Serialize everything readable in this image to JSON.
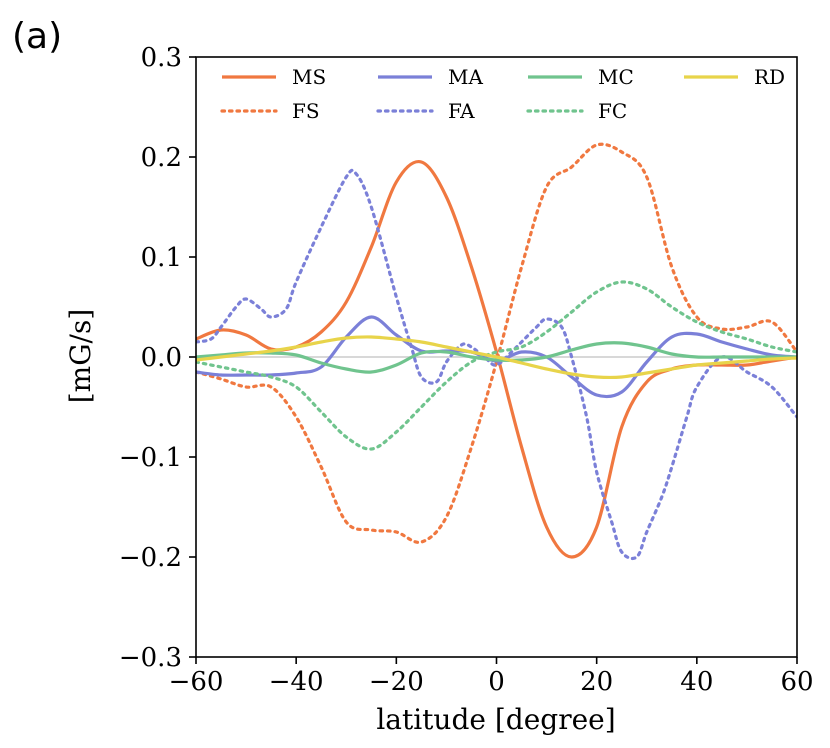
{
  "panel_label": "(a)",
  "chart_data": {
    "type": "line",
    "title": "",
    "xlabel": "latitude [degree]",
    "ylabel": "[mG/s]",
    "xlim": [
      -60,
      60
    ],
    "ylim": [
      -0.3,
      0.3
    ],
    "xticks": [
      -60,
      -40,
      -20,
      0,
      20,
      40,
      60
    ],
    "xtick_labels": [
      "−60",
      "−40",
      "−20",
      "0",
      "20",
      "40",
      "60"
    ],
    "yticks": [
      -0.3,
      -0.2,
      -0.1,
      0.0,
      0.1,
      0.2,
      0.3
    ],
    "ytick_labels": [
      "−0.3",
      "−0.2",
      "−0.1",
      "0.0",
      "0.1",
      "0.2",
      "0.3"
    ],
    "grid": false,
    "zero_line": true,
    "legend_position": "top",
    "legend_columns": 4,
    "series": [
      {
        "name": "MS",
        "color": "#f07840",
        "style": "solid",
        "x": [
          -60,
          -55,
          -50,
          -45,
          -40,
          -35,
          -30,
          -25,
          -20,
          -15,
          -10,
          -5,
          0,
          5,
          10,
          15,
          20,
          25,
          30,
          35,
          40,
          45,
          50,
          55,
          60
        ],
        "y": [
          0.018,
          0.027,
          0.022,
          0.008,
          0.01,
          0.025,
          0.055,
          0.11,
          0.175,
          0.195,
          0.16,
          0.09,
          0.005,
          -0.09,
          -0.17,
          -0.2,
          -0.17,
          -0.07,
          -0.025,
          -0.012,
          -0.008,
          -0.008,
          -0.008,
          -0.004,
          0.0
        ]
      },
      {
        "name": "FS",
        "color": "#f07840",
        "style": "dotted",
        "x": [
          -60,
          -55,
          -50,
          -45,
          -40,
          -35,
          -30,
          -25,
          -20,
          -15,
          -10,
          -5,
          0,
          5,
          10,
          15,
          20,
          25,
          30,
          35,
          40,
          45,
          50,
          55,
          60
        ],
        "y": [
          -0.015,
          -0.022,
          -0.03,
          -0.03,
          -0.06,
          -0.11,
          -0.165,
          -0.173,
          -0.175,
          -0.185,
          -0.16,
          -0.09,
          -0.005,
          0.09,
          0.17,
          0.19,
          0.212,
          0.205,
          0.18,
          0.09,
          0.04,
          0.028,
          0.03,
          0.035,
          0.005
        ]
      },
      {
        "name": "MA",
        "color": "#7b80d8",
        "style": "solid",
        "x": [
          -60,
          -55,
          -50,
          -45,
          -40,
          -35,
          -30,
          -25,
          -20,
          -15,
          -10,
          -5,
          0,
          5,
          10,
          15,
          20,
          25,
          30,
          35,
          40,
          45,
          50,
          55,
          60
        ],
        "y": [
          -0.015,
          -0.018,
          -0.018,
          -0.018,
          -0.016,
          -0.01,
          0.02,
          0.04,
          0.022,
          0.006,
          0.006,
          0.005,
          -0.004,
          0.005,
          0.0,
          -0.02,
          -0.038,
          -0.035,
          -0.005,
          0.02,
          0.023,
          0.015,
          0.008,
          0.002,
          0.0
        ]
      },
      {
        "name": "FA",
        "color": "#7b80d8",
        "style": "dotted",
        "x": [
          -60,
          -57,
          -55,
          -52,
          -50,
          -47,
          -45,
          -42,
          -40,
          -35,
          -30,
          -28,
          -25,
          -20,
          -17,
          -15,
          -12,
          -10,
          -7,
          -5,
          -2,
          0,
          3,
          5,
          8,
          10,
          13,
          15,
          18,
          20,
          23,
          25,
          28,
          30,
          33,
          35,
          38,
          40,
          45,
          50,
          55,
          60
        ],
        "y": [
          0.015,
          0.018,
          0.03,
          0.05,
          0.058,
          0.048,
          0.04,
          0.048,
          0.075,
          0.13,
          0.18,
          0.183,
          0.15,
          0.06,
          0.01,
          -0.02,
          -0.025,
          -0.005,
          0.012,
          0.01,
          -0.002,
          -0.008,
          0.005,
          0.015,
          0.03,
          0.038,
          0.03,
          0.0,
          -0.06,
          -0.115,
          -0.165,
          -0.195,
          -0.2,
          -0.175,
          -0.14,
          -0.11,
          -0.06,
          -0.03,
          0.0,
          -0.015,
          -0.03,
          -0.06
        ]
      },
      {
        "name": "MC",
        "color": "#70c48e",
        "style": "solid",
        "x": [
          -60,
          -55,
          -50,
          -45,
          -40,
          -35,
          -30,
          -25,
          -20,
          -15,
          -10,
          -5,
          0,
          5,
          10,
          15,
          20,
          25,
          30,
          35,
          40,
          45,
          50,
          55,
          60
        ],
        "y": [
          0.0,
          0.002,
          0.004,
          0.004,
          0.002,
          -0.006,
          -0.012,
          -0.015,
          -0.008,
          0.004,
          0.005,
          0.0,
          -0.003,
          -0.003,
          0.0,
          0.007,
          0.013,
          0.014,
          0.01,
          0.003,
          0.0,
          0.0,
          0.0,
          0.0,
          0.0
        ]
      },
      {
        "name": "FC",
        "color": "#70c48e",
        "style": "dotted",
        "x": [
          -60,
          -55,
          -50,
          -45,
          -40,
          -35,
          -30,
          -25,
          -20,
          -15,
          -10,
          -5,
          0,
          5,
          10,
          15,
          20,
          25,
          30,
          35,
          40,
          45,
          50,
          55,
          60
        ],
        "y": [
          -0.005,
          -0.01,
          -0.015,
          -0.02,
          -0.03,
          -0.055,
          -0.08,
          -0.092,
          -0.075,
          -0.05,
          -0.025,
          -0.005,
          0.005,
          0.01,
          0.025,
          0.045,
          0.065,
          0.075,
          0.068,
          0.05,
          0.035,
          0.025,
          0.018,
          0.01,
          0.005
        ]
      },
      {
        "name": "RD",
        "color": "#e8d44a",
        "style": "solid",
        "x": [
          -60,
          -55,
          -50,
          -45,
          -40,
          -35,
          -30,
          -25,
          -20,
          -15,
          -10,
          -5,
          0,
          5,
          10,
          15,
          20,
          25,
          30,
          35,
          40,
          45,
          50,
          55,
          60
        ],
        "y": [
          -0.003,
          0.0,
          0.003,
          0.006,
          0.01,
          0.015,
          0.019,
          0.02,
          0.018,
          0.015,
          0.01,
          0.005,
          0.0,
          -0.006,
          -0.012,
          -0.017,
          -0.02,
          -0.02,
          -0.016,
          -0.012,
          -0.008,
          -0.006,
          -0.004,
          -0.002,
          -0.001
        ]
      }
    ]
  }
}
